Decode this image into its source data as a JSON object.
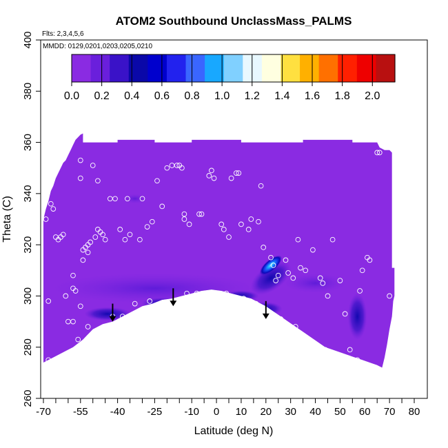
{
  "chart_data": {
    "type": "heatmap",
    "title": "ATOM2 Southbound UnclassMass_PALMS",
    "subtitle_flights": "Flts: 2,3,4,5,6",
    "subtitle_dates": "MMDD: 0129,0201,0203,0205,0210",
    "xlabel": "Latitude (deg N)",
    "ylabel": "Theta (C)",
    "xlim": [
      -70,
      80
    ],
    "ylim": [
      260,
      400
    ],
    "x_tick_labels": [
      -70,
      -55,
      -40,
      -25,
      -10,
      0,
      10,
      20,
      30,
      40,
      50,
      60,
      70,
      80
    ],
    "x_minor_ticks": [
      -65,
      -60,
      -50,
      -45,
      -35,
      -30,
      -20,
      -15,
      -5,
      5,
      15,
      25,
      35,
      45,
      55,
      65,
      75
    ],
    "y_ticks": [
      260,
      280,
      300,
      320,
      340,
      360,
      380,
      400
    ],
    "colorbar": {
      "ticks": [
        0.0,
        0.2,
        0.4,
        0.6,
        0.8,
        1.0,
        1.2,
        1.4,
        1.6,
        1.8,
        2.0
      ],
      "tick_labels": [
        "0.0",
        "0.2",
        "0.4",
        "0.6",
        "0.8",
        "1.0",
        "1.2",
        "1.4",
        "1.6",
        "1.8",
        "2.0"
      ],
      "range": [
        0.0,
        2.15
      ],
      "colors": [
        "#8a2be2",
        "#6a1fdc",
        "#3a12c8",
        "#0a08a8",
        "#0000cd",
        "#2222ee",
        "#3a66ff",
        "#18a8ff",
        "#80d0ff",
        "#e8f8ff",
        "#ffffe0",
        "#ffe040",
        "#ffb000",
        "#ff7000",
        "#ff2000",
        "#ee0000",
        "#b81010"
      ]
    },
    "background_value": 0.05,
    "enhanced_regions": [
      {
        "lat": 22,
        "theta": 312,
        "value": 0.75
      },
      {
        "lat": 22,
        "theta": 305,
        "value": 0.35
      },
      {
        "lat": -42,
        "theta": 292,
        "value": 0.3
      },
      {
        "lat": -20,
        "theta": 297,
        "value": 0.25
      },
      {
        "lat": 20,
        "theta": 294,
        "value": 0.3
      },
      {
        "lat": 57,
        "theta": 292,
        "value": 0.25
      }
    ],
    "arrows": [
      {
        "lat": -42,
        "theta": 297
      },
      {
        "lat": -17.5,
        "theta": 303
      },
      {
        "lat": 20,
        "theta": 298
      }
    ],
    "points": [
      [
        -69,
        330
      ],
      [
        -68,
        298
      ],
      [
        -68,
        275
      ],
      [
        -67,
        336
      ],
      [
        -66,
        334
      ],
      [
        -65,
        323
      ],
      [
        -64,
        322
      ],
      [
        -63,
        323
      ],
      [
        -62,
        324
      ],
      [
        -61,
        300
      ],
      [
        -60,
        290
      ],
      [
        -58,
        308
      ],
      [
        -58,
        303
      ],
      [
        -58,
        290
      ],
      [
        -57,
        302
      ],
      [
        -56,
        283
      ],
      [
        -55,
        353
      ],
      [
        -55,
        346
      ],
      [
        -55,
        296
      ],
      [
        -54,
        318
      ],
      [
        -54,
        314
      ],
      [
        -53,
        319
      ],
      [
        -52,
        320
      ],
      [
        -52,
        317
      ],
      [
        -52,
        288
      ],
      [
        -51,
        321
      ],
      [
        -50,
        351
      ],
      [
        -49,
        323
      ],
      [
        -48,
        345
      ],
      [
        -48,
        326
      ],
      [
        -47,
        325
      ],
      [
        -46,
        324
      ],
      [
        -45,
        322
      ],
      [
        -43,
        338
      ],
      [
        -42,
        292
      ],
      [
        -41,
        338
      ],
      [
        -39,
        326
      ],
      [
        -38,
        292
      ],
      [
        -37,
        322
      ],
      [
        -36,
        338
      ],
      [
        -35,
        324
      ],
      [
        -33,
        297
      ],
      [
        -31,
        322
      ],
      [
        -30,
        338
      ],
      [
        -28,
        327
      ],
      [
        -27,
        298
      ],
      [
        -26,
        329
      ],
      [
        -24,
        345
      ],
      [
        -22,
        335
      ],
      [
        -20,
        350
      ],
      [
        -18,
        351
      ],
      [
        -16,
        351
      ],
      [
        -15,
        351
      ],
      [
        -14,
        350
      ],
      [
        -13,
        332
      ],
      [
        -13,
        330
      ],
      [
        -12,
        301
      ],
      [
        -11,
        328
      ],
      [
        -8,
        301
      ],
      [
        -7,
        332
      ],
      [
        -6,
        332
      ],
      [
        -3,
        347
      ],
      [
        -2,
        349
      ],
      [
        -1,
        346
      ],
      [
        2,
        328
      ],
      [
        3,
        326
      ],
      [
        4,
        301
      ],
      [
        5,
        323
      ],
      [
        6,
        346
      ],
      [
        8,
        348
      ],
      [
        9,
        348
      ],
      [
        10,
        328
      ],
      [
        11,
        299
      ],
      [
        13,
        326
      ],
      [
        14,
        330
      ],
      [
        16,
        297
      ],
      [
        17,
        329
      ],
      [
        18,
        343
      ],
      [
        19,
        319
      ],
      [
        21,
        293
      ],
      [
        22,
        315
      ],
      [
        23,
        312
      ],
      [
        24,
        306
      ],
      [
        25,
        308
      ],
      [
        26,
        291
      ],
      [
        28,
        314
      ],
      [
        29,
        309
      ],
      [
        31,
        307
      ],
      [
        32,
        288
      ],
      [
        33,
        322
      ],
      [
        34,
        311
      ],
      [
        36,
        310
      ],
      [
        38,
        281
      ],
      [
        39,
        318
      ],
      [
        42,
        307
      ],
      [
        43,
        305
      ],
      [
        44,
        279
      ],
      [
        45,
        300
      ],
      [
        47,
        322
      ],
      [
        50,
        306
      ],
      [
        52,
        293
      ],
      [
        54,
        279
      ],
      [
        57,
        275
      ],
      [
        58,
        302
      ],
      [
        59,
        310
      ],
      [
        61,
        315
      ],
      [
        62,
        314
      ],
      [
        65,
        356
      ],
      [
        66,
        356
      ],
      [
        70,
        300
      ]
    ]
  }
}
